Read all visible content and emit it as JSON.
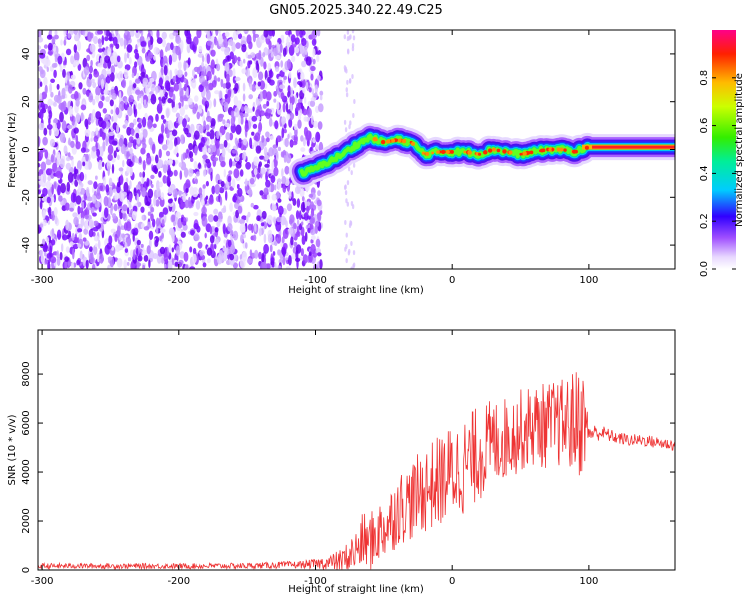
{
  "chart_data": [
    {
      "type": "heatmap",
      "title": "GN05.2025.340.22.49.C25",
      "xlabel": "Height of straight line (km)",
      "ylabel": "Frequency (Hz)",
      "xlim": [
        -303,
        163
      ],
      "ylim": [
        -50,
        50
      ],
      "xticks": [
        -300,
        -200,
        -100,
        0,
        100
      ],
      "yticks": [
        -40,
        -20,
        0,
        20,
        40
      ],
      "colorbar": {
        "label": "Normalized spectral amplitude",
        "range": [
          0.0,
          1.0
        ],
        "ticks": [
          0.0,
          0.2,
          0.4,
          0.6,
          0.8
        ]
      },
      "ridge": {
        "description": "narrow-band signal centred near 0 Hz",
        "heights_km": [
          -110,
          -100,
          -90,
          -80,
          -70,
          -60,
          -50,
          -40,
          -30,
          -20,
          -10,
          0,
          10,
          20,
          30,
          40,
          50,
          60,
          70,
          80,
          90,
          100,
          120,
          140,
          163
        ],
        "frequency_hz": [
          -10,
          -8,
          -5,
          -2,
          2,
          5,
          3,
          4,
          3,
          -2,
          -1,
          -1,
          -1,
          -2,
          0,
          -1,
          -2,
          -1,
          0,
          0,
          -1,
          1,
          1,
          1,
          1
        ]
      }
    },
    {
      "type": "line",
      "xlabel": "Height of straight line (km)",
      "ylabel": "SNR (10 * v/v)",
      "xlim": [
        -303,
        163
      ],
      "ylim": [
        0,
        9800
      ],
      "xticks": [
        -300,
        -200,
        -100,
        0,
        100
      ],
      "yticks": [
        0,
        2000,
        4000,
        6000,
        8000
      ],
      "series": [
        {
          "name": "SNR",
          "color": "#ee3333",
          "x": [
            -303,
            -280,
            -250,
            -200,
            -150,
            -110,
            -100,
            -90,
            -80,
            -70,
            -65,
            -60,
            -55,
            -50,
            -45,
            -40,
            -30,
            -20,
            -10,
            0,
            10,
            20,
            30,
            40,
            50,
            60,
            70,
            80,
            90,
            95,
            100,
            110,
            120,
            130,
            140,
            150,
            163
          ],
          "values": [
            150,
            170,
            160,
            160,
            170,
            220,
            250,
            300,
            400,
            800,
            1200,
            1100,
            1500,
            1700,
            2000,
            2500,
            2800,
            3300,
            3600,
            4000,
            4300,
            4800,
            5200,
            5400,
            5700,
            5900,
            5900,
            6000,
            6000,
            6200,
            5600,
            5600,
            5400,
            5300,
            5300,
            5200,
            5100
          ],
          "noise_amplitude": [
            120,
            110,
            110,
            110,
            120,
            150,
            200,
            300,
            500,
            900,
            1200,
            1200,
            1300,
            1300,
            1400,
            1500,
            1600,
            1800,
            1900,
            2000,
            2000,
            2000,
            1800,
            1700,
            1700,
            1700,
            1800,
            1800,
            2200,
            2500,
            400,
            300,
            250,
            250,
            250,
            250,
            250
          ]
        }
      ]
    }
  ]
}
